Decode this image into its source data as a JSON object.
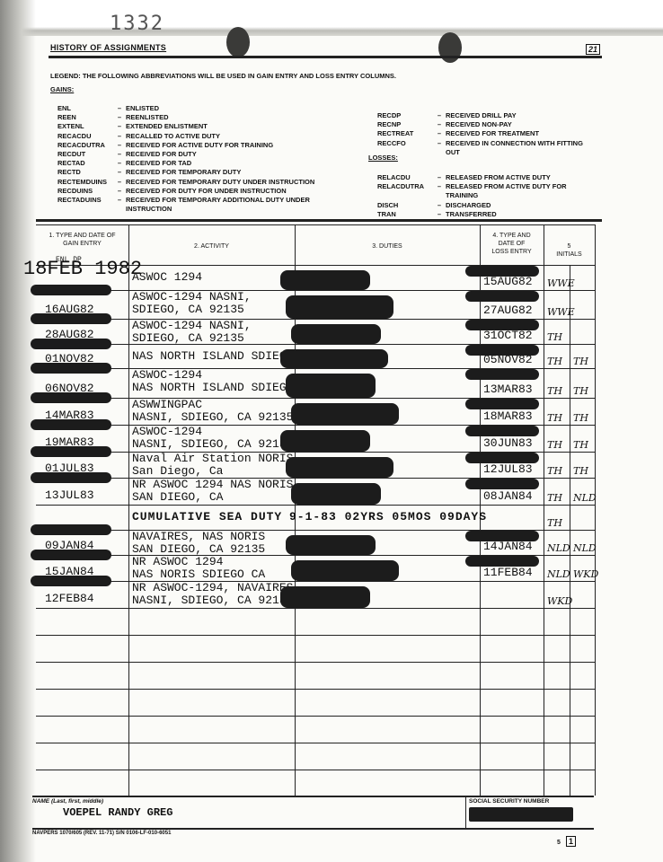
{
  "header": {
    "stamp_number": "1332",
    "form_title": "HISTORY OF ASSIGNMENTS",
    "page_box": "21"
  },
  "legend": {
    "intro": "LEGEND:  THE FOLLOWING ABBREVIATIONS WILL BE USED IN GAIN ENTRY AND LOSS ENTRY COLUMNS.",
    "gains_label": "GAINS:",
    "gains": [
      {
        "abbr": "ENL",
        "meaning": "ENLISTED"
      },
      {
        "abbr": "REEN",
        "meaning": "REENLISTED"
      },
      {
        "abbr": "EXTENL",
        "meaning": "EXTENDED ENLISTMENT"
      },
      {
        "abbr": "RECACDU",
        "meaning": "RECALLED TO ACTIVE DUTY"
      },
      {
        "abbr": "RECACDUTRA",
        "meaning": "RECEIVED FOR ACTIVE DUTY FOR TRAINING"
      },
      {
        "abbr": "RECDUT",
        "meaning": "RECEIVED FOR DUTY"
      },
      {
        "abbr": "RECTAD",
        "meaning": "RECEIVED FOR TAD"
      },
      {
        "abbr": "RECTD",
        "meaning": "RECEIVED FOR TEMPORARY DUTY"
      },
      {
        "abbr": "RECTEMDUINS",
        "meaning": "RECEIVED FOR TEMPORARY DUTY UNDER INSTRUCTION"
      },
      {
        "abbr": "RECDUINS",
        "meaning": "RECEIVED FOR DUTY FOR UNDER INSTRUCTION"
      },
      {
        "abbr": "RECTADUINS",
        "meaning": "RECEIVED FOR TEMPORARY ADDITIONAL DUTY UNDER INSTRUCTION"
      }
    ],
    "gains_right": [
      {
        "abbr": "RECDP",
        "meaning": "RECEIVED DRILL PAY"
      },
      {
        "abbr": "RECNP",
        "meaning": "RECEIVED NON-PAY"
      },
      {
        "abbr": "RECTREAT",
        "meaning": "RECEIVED FOR TREATMENT"
      },
      {
        "abbr": "RECCFO",
        "meaning": "RECEIVED IN CONNECTION WITH FITTING OUT"
      }
    ],
    "losses_label": "LOSSES:",
    "losses": [
      {
        "abbr": "RELACDU",
        "meaning": "RELEASED FROM ACTIVE DUTY"
      },
      {
        "abbr": "RELACDUTRA",
        "meaning": "RELEASED FROM ACTIVE DUTY FOR TRAINING"
      },
      {
        "abbr": "DISCH",
        "meaning": "DISCHARGED"
      },
      {
        "abbr": "TRAN",
        "meaning": "TRANSFERRED"
      }
    ]
  },
  "table": {
    "columns": [
      "1. TYPE AND DATE OF GAIN ENTRY",
      "2. ACTIVITY",
      "3. DUTIES",
      "4. TYPE AND DATE OF LOSS ENTRY",
      "5  INITIALS"
    ],
    "first_gain_note": "ENL DP",
    "rows": [
      {
        "gain": "18FEB 1982",
        "activity": [
          "ASWOC 1294",
          ""
        ],
        "duties": "",
        "loss": "15AUG82",
        "initials": [
          "WWE",
          ""
        ]
      },
      {
        "gain": "16AUG82",
        "activity": [
          "ASWOC-1294  NASNI,",
          "SDIEGO, CA 92135"
        ],
        "duties": "",
        "loss": "27AUG82",
        "initials": [
          "WWE",
          ""
        ]
      },
      {
        "gain": "28AUG82",
        "activity": [
          "ASWOC-1294 NASNI,",
          "SDIEGO, CA 92135"
        ],
        "duties": "",
        "loss": "31OCT82",
        "initials": [
          "TH",
          ""
        ]
      },
      {
        "gain": "01NOV82",
        "activity": [
          "NAS NORTH ISLAND SDIEGO",
          ""
        ],
        "duties": "",
        "loss": "05NOV82",
        "initials": [
          "TH",
          "TH"
        ]
      },
      {
        "gain": "06NOV82",
        "activity": [
          "ASWOC-1294",
          "NAS NORTH ISLAND SDIEGO"
        ],
        "duties": "",
        "loss": "13MAR83",
        "initials": [
          "TH",
          "TH"
        ]
      },
      {
        "gain": "14MAR83",
        "activity": [
          "ASWWINGPAC",
          "NASNI, SDIEGO, CA 92135"
        ],
        "duties": "",
        "loss": "18MAR83",
        "initials": [
          "TH",
          "TH"
        ]
      },
      {
        "gain": "19MAR83",
        "activity": [
          "ASWOC-1294",
          "NASNI, SDIEGO, CA 92135"
        ],
        "duties": "",
        "loss": "30JUN83",
        "initials": [
          "TH",
          "TH"
        ]
      },
      {
        "gain": "01JUL83",
        "activity": [
          "Naval Air Station NORIS",
          "San Diego, Ca"
        ],
        "duties": "",
        "loss": "12JUL83",
        "initials": [
          "TH",
          "TH"
        ]
      },
      {
        "gain": "13JUL83",
        "activity": [
          "NR ASWOC 1294 NAS NORIS",
          "SAN DIEGO, CA"
        ],
        "duties": "",
        "loss": "08JAN84",
        "initials": [
          "TH",
          "NLD"
        ]
      },
      {
        "gain": "",
        "activity": [
          "CUMULATIVE SEA DUTY",
          ""
        ],
        "duties": "9-1-83  02YRS 05MOS 09DAYS",
        "loss": "",
        "initials": [
          "TH",
          ""
        ]
      },
      {
        "gain": "09JAN84",
        "activity": [
          "NAVAIRES, NAS NORIS",
          "SAN DIEGO, CA 92135"
        ],
        "duties": "",
        "loss": "14JAN84",
        "initials": [
          "NLD",
          "NLD"
        ]
      },
      {
        "gain": "15JAN84",
        "activity": [
          "NR ASWOC 1294",
          "NAS NORIS SDIEGO CA"
        ],
        "duties": "",
        "loss": "11FEB84",
        "initials": [
          "NLD",
          "WKD"
        ]
      },
      {
        "gain": "12FEB84",
        "activity": [
          "NR ASWOC-1294, NAVAIRES",
          "NASNI, SDIEGO, CA 92135"
        ],
        "duties": "",
        "loss": "",
        "initials": [
          "WKD",
          ""
        ]
      }
    ]
  },
  "footer": {
    "name_label": "NAME (Last, first, middle)",
    "name_value": "VOEPEL RANDY GREG",
    "ssn_label": "SOCIAL SECURITY NUMBER",
    "form_number": "NAVPERS 1070/605 (REV. 11-71) S/N 0106-LF-010-6051",
    "page_label": "5",
    "page_box": "1"
  }
}
